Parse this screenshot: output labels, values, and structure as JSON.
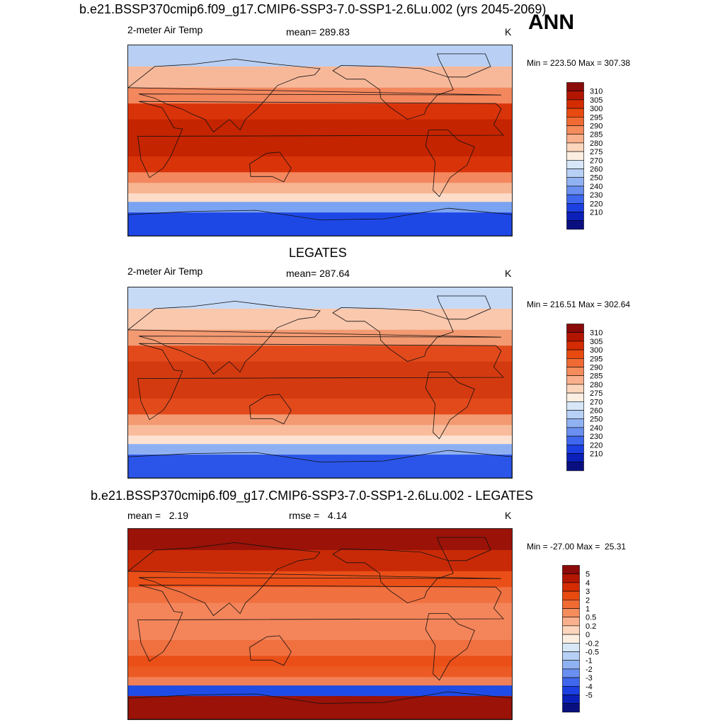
{
  "header": {
    "title": "b.e21.BSSP370cmip6.f09_g17.CMIP6-SSP3-7.0-SSP1-2.6Lu.002 (yrs 2045-2069)",
    "season": "ANN"
  },
  "panels": [
    {
      "title": "",
      "left_label": "2-meter Air Temp",
      "center_label": "mean= 289.83",
      "right_label": "K",
      "minmax": "Min = 223.50 Max = 307.38",
      "colorbar": {
        "labels": [
          "310",
          "305",
          "300",
          "295",
          "290",
          "285",
          "280",
          "275",
          "270",
          "260",
          "250",
          "240",
          "230",
          "220",
          "210"
        ],
        "colors": [
          "#8b0a0a",
          "#b31600",
          "#d42c00",
          "#e84a10",
          "#f06a34",
          "#f58c5c",
          "#f9b08c",
          "#fcd6bc",
          "#fdeee2",
          "#d7e7f8",
          "#b7d0f5",
          "#91b2f2",
          "#6a8ff0",
          "#3f67ee",
          "#1b3fe0",
          "#0a20b8",
          "#0a0f80"
        ]
      },
      "map_colors": {
        "north_polar": "#b9d0f4",
        "north_mid": "#f7b89a",
        "mid_lat": "#f3875e",
        "tropics": "#d9330a",
        "warm_pool": "#c42400",
        "south_mid": "#f7b592",
        "south_sub": "#fcdcc9",
        "south_polar": "#7aa3f1",
        "antarctic": "#1e48e6"
      }
    },
    {
      "title": "LEGATES",
      "left_label": "2-meter Air Temp",
      "center_label": "mean= 287.64",
      "right_label": "K",
      "minmax": "Min = 216.51 Max = 302.64",
      "colorbar": {
        "labels": [
          "310",
          "305",
          "300",
          "295",
          "290",
          "285",
          "280",
          "275",
          "270",
          "260",
          "250",
          "240",
          "230",
          "220",
          "210"
        ],
        "colors": [
          "#8b0a0a",
          "#b31600",
          "#d42c00",
          "#e84a10",
          "#f06a34",
          "#f58c5c",
          "#f9b08c",
          "#fcd6bc",
          "#fdeee2",
          "#d7e7f8",
          "#b7d0f5",
          "#91b2f2",
          "#6a8ff0",
          "#3f67ee",
          "#1b3fe0",
          "#0a20b8",
          "#0a0f80"
        ]
      },
      "map_colors": {
        "north_polar": "#c6daf6",
        "north_mid": "#f9c8ad",
        "mid_lat": "#f39a72",
        "tropics": "#e24a1c",
        "warm_pool": "#d43a10",
        "south_mid": "#f8bc9c",
        "south_sub": "#fde2d2",
        "south_polar": "#8eb0f3",
        "antarctic": "#2b55e8"
      }
    },
    {
      "title": "b.e21.BSSP370cmip6.f09_g17.CMIP6-SSP3-7.0-SSP1-2.6Lu.002 - LEGATES",
      "left_label": "mean =   2.19",
      "center_label": "rmse =   4.14",
      "right_label": "K",
      "minmax": "Min = -27.00 Max =  25.31",
      "colorbar": {
        "labels": [
          "5",
          "4",
          "3",
          "2",
          "1",
          "0.5",
          "0.2",
          "0",
          "-0.2",
          "-0.5",
          "-1",
          "-2",
          "-3",
          "-4",
          "-5"
        ],
        "colors": [
          "#8b0a0a",
          "#b31600",
          "#d42c00",
          "#e84a10",
          "#f06a34",
          "#f58c5c",
          "#f9b08c",
          "#fcd6bc",
          "#fdeee2",
          "#d7e7f8",
          "#b7d0f5",
          "#91b2f2",
          "#6a8ff0",
          "#3f67ee",
          "#1b3fe0",
          "#0a20b8",
          "#0a0f80"
        ]
      },
      "map_colors": {
        "north_polar": "#9a1208",
        "north_mid": "#c82a08",
        "mid_lat": "#ea4f18",
        "tropics": "#f07040",
        "warm_pool": "#f4855a",
        "south_mid": "#ec5a24",
        "south_sub": "#f08058",
        "south_polar": "#1f4ce6",
        "antarctic": "#9a1208"
      }
    }
  ]
}
